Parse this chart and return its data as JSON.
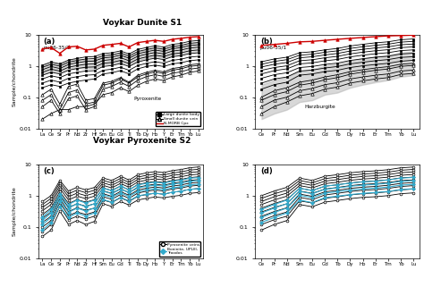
{
  "x_labels_a": [
    "La",
    "Ce",
    "Sr",
    "Pr",
    "Nd",
    "Zr",
    "Hf",
    "Sm",
    "Eu",
    "Gd",
    "Ti",
    "Tb",
    "Dy",
    "Ho",
    "Y",
    "Er",
    "Tm",
    "Yb",
    "Lu"
  ],
  "x_labels_b": [
    "Ce",
    "Pr",
    "Nd",
    "Sm",
    "Eu",
    "Gd",
    "Tb",
    "Dy",
    "Ho",
    "Er",
    "Tm",
    "Yb",
    "Lu"
  ],
  "x_labels_c": [
    "La",
    "Ce",
    "Sr",
    "Pr",
    "Nd",
    "Zr",
    "Hf",
    "Sm",
    "Eu",
    "Gd",
    "Ti",
    "Tb",
    "Dy",
    "Ho",
    "Y",
    "Er",
    "Tm",
    "Yb",
    "Lu"
  ],
  "x_labels_d": [
    "Ce",
    "Pr",
    "Nd",
    "Sm",
    "Eu",
    "Gd",
    "Tb",
    "Dy",
    "Ho",
    "Er",
    "Tm",
    "Yb",
    "Lu"
  ],
  "title_top": "Voykar Dunite S1",
  "title_c": "Voykar Pyroxenite S2",
  "color_red": "#cc0000",
  "color_blue": "#33aacc",
  "color_gray": "#999999"
}
